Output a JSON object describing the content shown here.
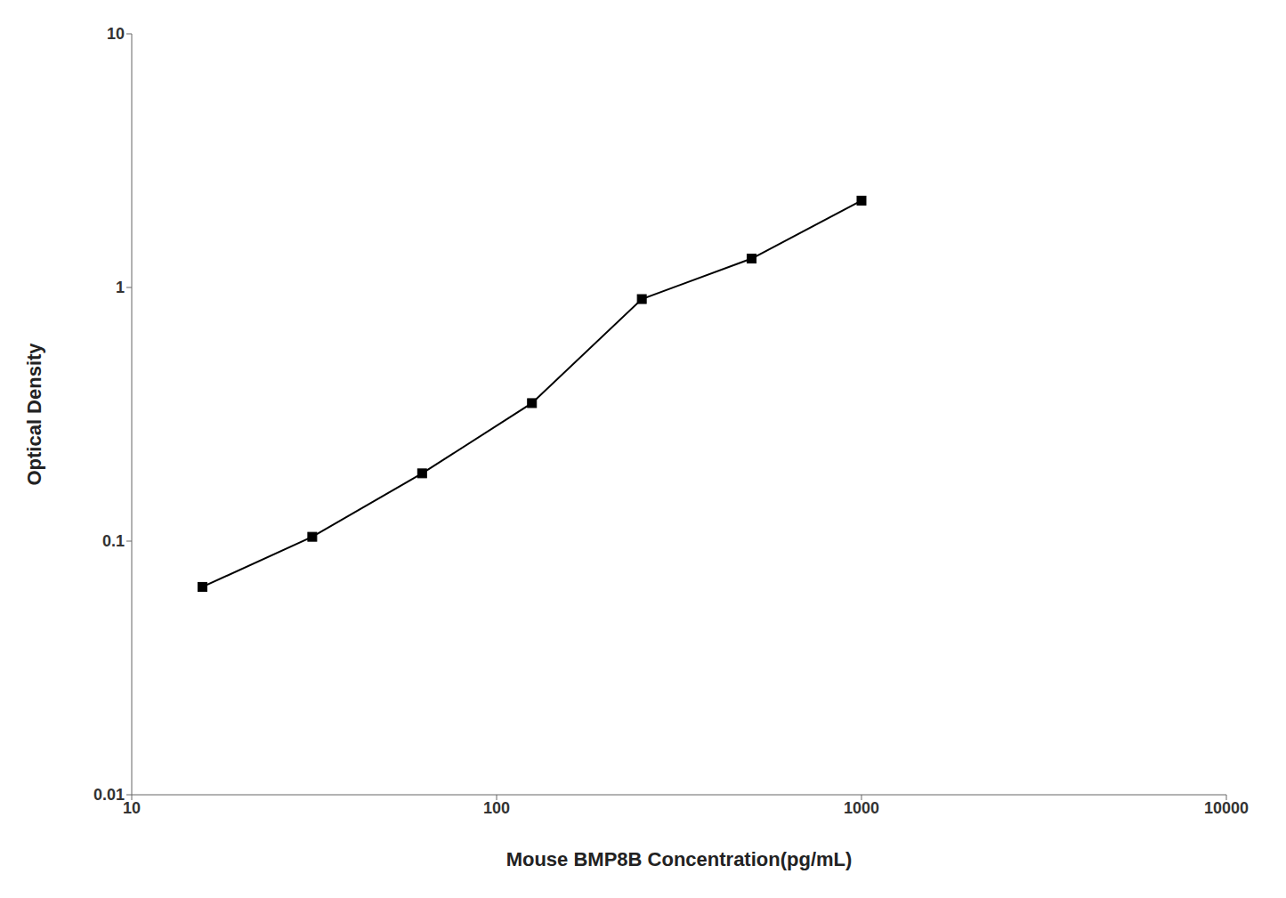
{
  "chart_data": {
    "type": "line",
    "x": [
      15.625,
      31.25,
      62.5,
      125,
      250,
      500,
      1000
    ],
    "values": [
      0.066,
      0.104,
      0.185,
      0.35,
      0.9,
      1.3,
      2.2
    ],
    "xlabel": "Mouse BMP8B Concentration(pg/mL)",
    "ylabel": "Optical Density",
    "xlim": [
      10,
      10000
    ],
    "ylim": [
      0.01,
      10
    ],
    "xticks": [
      10,
      100,
      1000,
      10000
    ],
    "yticks": [
      0.01,
      0.1,
      1,
      10
    ],
    "log": true,
    "grid": false,
    "color": "#000000",
    "marker": "square"
  }
}
